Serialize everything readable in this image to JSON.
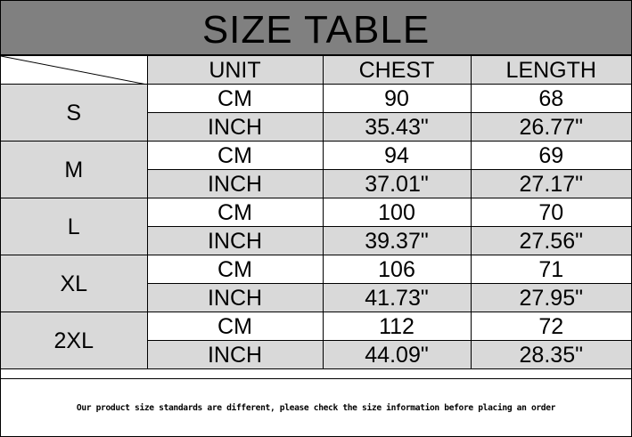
{
  "title": "SIZE TABLE",
  "headers": [
    "UNIT",
    "CHEST",
    "LENGTH"
  ],
  "rows": [
    {
      "size": "S",
      "cm": {
        "unit": "CM",
        "chest": "90",
        "length": "68"
      },
      "inch": {
        "unit": "INCH",
        "chest": "35.43\"",
        "length": "26.77\""
      }
    },
    {
      "size": "M",
      "cm": {
        "unit": "CM",
        "chest": "94",
        "length": "69"
      },
      "inch": {
        "unit": "INCH",
        "chest": "37.01\"",
        "length": "27.17\""
      }
    },
    {
      "size": "L",
      "cm": {
        "unit": "CM",
        "chest": "100",
        "length": "70"
      },
      "inch": {
        "unit": "INCH",
        "chest": "39.37\"",
        "length": "27.56\""
      }
    },
    {
      "size": "XL",
      "cm": {
        "unit": "CM",
        "chest": "106",
        "length": "71"
      },
      "inch": {
        "unit": "INCH",
        "chest": "41.73\"",
        "length": "27.95\""
      }
    },
    {
      "size": "2XL",
      "cm": {
        "unit": "CM",
        "chest": "112",
        "length": "72"
      },
      "inch": {
        "unit": "INCH",
        "chest": "44.09\"",
        "length": "28.35\""
      }
    }
  ],
  "footer": "Our product size standards are different, please check the size information before placing an order",
  "colors": {
    "title_bg": "#808080",
    "cell_gray": "#d9d9d9"
  }
}
